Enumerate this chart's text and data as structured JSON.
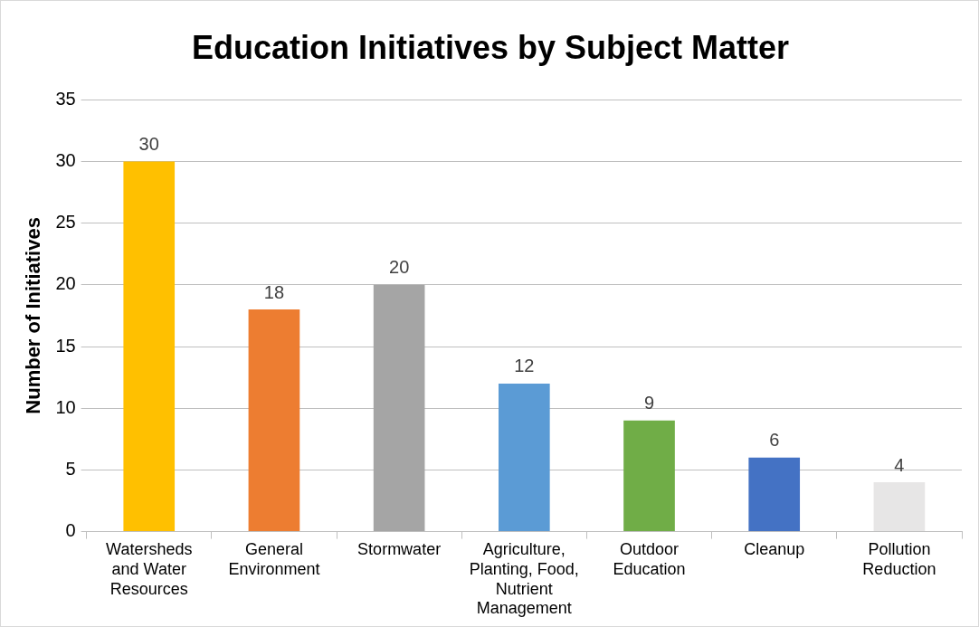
{
  "chart_data": {
    "type": "bar",
    "title": "Education Initiatives by Subject Matter",
    "ylabel": "Number of Initiatives",
    "categories": [
      "Watersheds and Water Resources",
      "General Environment",
      "Stormwater",
      "Agriculture, Planting, Food, Nutrient Management",
      "Outdoor Education",
      "Cleanup",
      "Pollution Reduction"
    ],
    "values": [
      30,
      18,
      20,
      12,
      9,
      6,
      4
    ],
    "colors": [
      "#ffc000",
      "#ed7d31",
      "#a5a5a5",
      "#5b9bd5",
      "#70ad47",
      "#4472c4",
      "#e7e6e6"
    ],
    "ylim": [
      0,
      35
    ],
    "yticks": [
      0,
      5,
      10,
      15,
      20,
      25,
      30,
      35
    ],
    "grid": "y",
    "data_labels": true,
    "legend": false
  }
}
